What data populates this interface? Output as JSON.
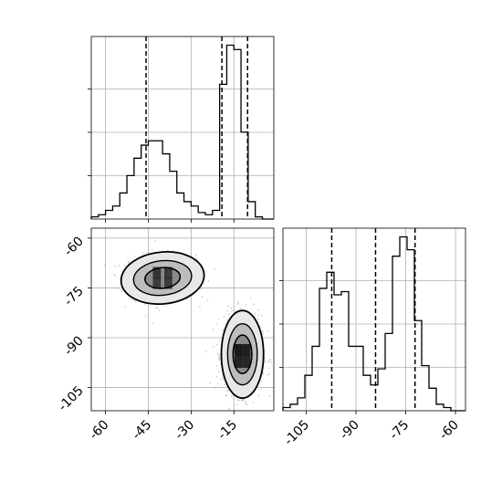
{
  "chart_data": {
    "type": "corner",
    "parameters": [
      {
        "range": [
          -65,
          -1
        ],
        "ticks": [
          -60,
          -45,
          -30,
          -15
        ],
        "hist": {
          "bin_edges": [
            -65,
            -62.5,
            -60,
            -57.5,
            -55,
            -52.5,
            -50,
            -47.5,
            -45,
            -42.5,
            -40,
            -37.5,
            -35,
            -32.5,
            -30,
            -27.5,
            -25,
            -22.5,
            -20,
            -17.5,
            -15,
            -12.5,
            -10,
            -7.5,
            -5,
            -2.5,
            -1
          ],
          "counts": [
            1,
            2,
            4,
            6,
            12,
            20,
            28,
            34,
            36,
            36,
            30,
            22,
            12,
            8,
            6,
            3,
            2,
            4,
            62,
            80,
            78,
            40,
            8,
            1,
            0,
            0
          ]
        },
        "quantiles": [
          -45.8,
          -19.2,
          -10.2
        ]
      },
      {
        "range": [
          -112,
          -57
        ],
        "ticks": [
          -105,
          -90,
          -75,
          -60
        ],
        "hist": {
          "bin_edges": [
            -112,
            -109.8,
            -107.6,
            -105.4,
            -103.2,
            -101,
            -98.8,
            -96.6,
            -94.4,
            -92.2,
            -90,
            -87.8,
            -85.6,
            -83.4,
            -81.2,
            -79,
            -76.8,
            -74.6,
            -72.4,
            -70.2,
            -68,
            -65.8,
            -63.6,
            -61.4,
            -59.2,
            -57
          ],
          "counts": [
            1,
            2,
            4,
            11,
            20,
            38,
            43,
            36,
            37,
            20,
            20,
            11,
            8,
            13,
            24,
            48,
            54,
            50,
            28,
            14,
            7,
            2,
            1,
            0,
            0
          ]
        },
        "quantiles": [
          -97.3,
          -84.1,
          -72.2
        ]
      }
    ],
    "scatter_sample": {
      "clusters": [
        {
          "center": [
            -40,
            -72
          ],
          "spread": [
            5.8,
            3.4
          ],
          "n": 900
        },
        {
          "center": [
            -12,
            -95
          ],
          "spread": [
            3.4,
            5.8
          ],
          "n": 900
        }
      ]
    },
    "contours": [
      {
        "center": [
          -40,
          -72
        ],
        "levels": [
          [
            14.6,
            7.8
          ],
          [
            10.2,
            5.2
          ],
          [
            6.2,
            3.1
          ]
        ],
        "rotation_deg": -6
      },
      {
        "center": [
          -12,
          -95
        ],
        "levels": [
          [
            7.4,
            13.2
          ],
          [
            5.2,
            9.2
          ],
          [
            3.3,
            5.8
          ]
        ],
        "rotation_deg": 0
      }
    ],
    "density_cells": [
      {
        "x": -13.4,
        "y": -93.7,
        "value": 1.0
      },
      {
        "x": -10.6,
        "y": -93.7,
        "value": 0.9
      },
      {
        "x": -13.4,
        "y": -97.3,
        "value": 0.85
      },
      {
        "x": -10.6,
        "y": -97.3,
        "value": 0.8
      },
      {
        "x": -42.0,
        "y": -70.5,
        "value": 0.55
      },
      {
        "x": -38.0,
        "y": -70.5,
        "value": 0.5
      },
      {
        "x": -42.0,
        "y": -73.5,
        "value": 0.45
      },
      {
        "x": -38.0,
        "y": -73.5,
        "value": 0.45
      }
    ],
    "grid": true
  }
}
